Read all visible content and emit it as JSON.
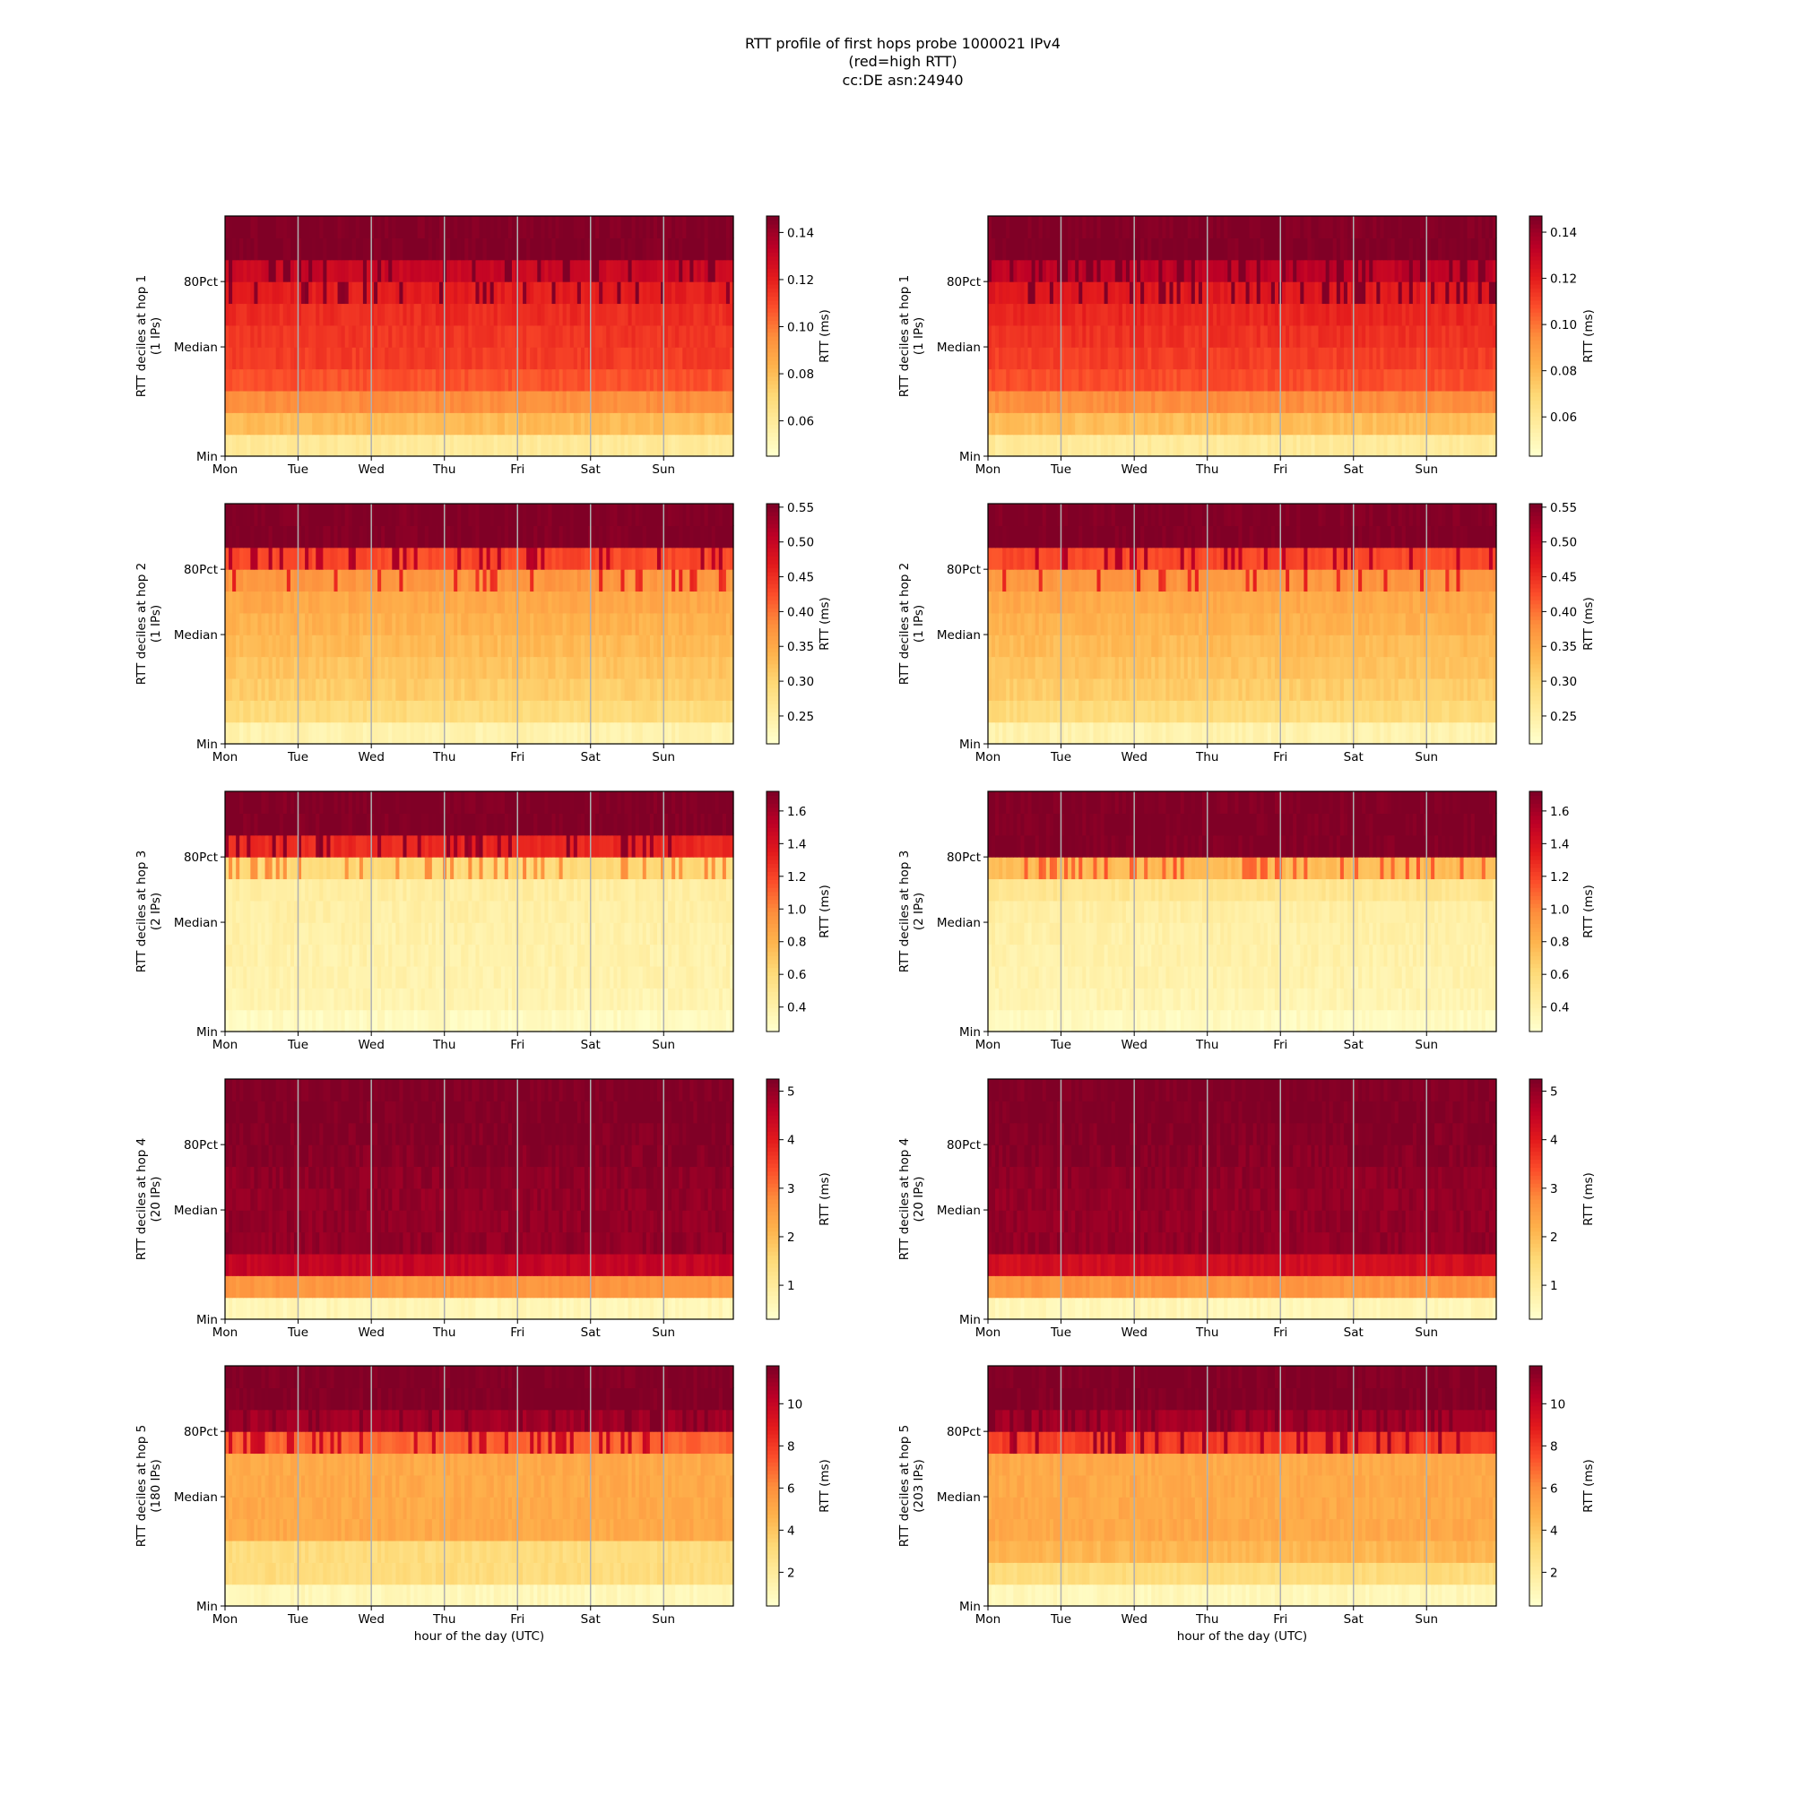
{
  "figure": {
    "title_lines": [
      "RTT profile of first hops probe 1000021 IPv4",
      "(red=high RTT)",
      "cc:DE asn:24940"
    ]
  },
  "shared": {
    "x_ticks": [
      "Mon",
      "Tue",
      "Wed",
      "Thu",
      "Fri",
      "Sat",
      "Sun"
    ],
    "y_ticks": [
      "Min",
      "Median",
      "80Pct"
    ],
    "xlabel": "hour of the day (UTC)",
    "colorbar_label": "RTT (ms)",
    "colormap": [
      "#ffffcc",
      "#ffeda0",
      "#fed976",
      "#feb24c",
      "#fd8d3c",
      "#fc4e2a",
      "#e31a1c",
      "#bd0026",
      "#800026"
    ]
  },
  "chart_data": [
    {
      "type": "heatmap",
      "ylabel": "RTT deciles at hop 1",
      "ips": "(1 IPs)",
      "cbar_ticks": [
        "0.06",
        "0.08",
        "0.10",
        "0.12",
        "0.14"
      ],
      "vmin": 0.045,
      "vmax": 0.147,
      "decile_values": [
        0.06,
        0.08,
        0.095,
        0.108,
        0.113,
        0.115,
        0.117,
        0.121,
        0.13,
        0.147
      ]
    },
    {
      "type": "heatmap",
      "ylabel": "RTT deciles at hop 1",
      "ips": "(1 IPs)",
      "cbar_ticks": [
        "0.06",
        "0.08",
        "0.10",
        "0.12",
        "0.14"
      ],
      "vmin": 0.043,
      "vmax": 0.147,
      "decile_values": [
        0.058,
        0.078,
        0.094,
        0.108,
        0.112,
        0.115,
        0.118,
        0.122,
        0.133,
        0.147
      ]
    },
    {
      "type": "heatmap",
      "ylabel": "RTT deciles at hop 2",
      "ips": "(1 IPs)",
      "cbar_ticks": [
        "0.25",
        "0.30",
        "0.35",
        "0.40",
        "0.45",
        "0.50",
        "0.55"
      ],
      "vmin": 0.21,
      "vmax": 0.555,
      "decile_values": [
        0.24,
        0.29,
        0.31,
        0.32,
        0.33,
        0.34,
        0.35,
        0.37,
        0.43,
        0.555
      ]
    },
    {
      "type": "heatmap",
      "ylabel": "RTT deciles at hop 2",
      "ips": "(1 IPs)",
      "cbar_ticks": [
        "0.25",
        "0.30",
        "0.35",
        "0.40",
        "0.45",
        "0.50",
        "0.55"
      ],
      "vmin": 0.21,
      "vmax": 0.555,
      "decile_values": [
        0.24,
        0.29,
        0.31,
        0.32,
        0.33,
        0.34,
        0.35,
        0.37,
        0.43,
        0.555
      ]
    },
    {
      "type": "heatmap",
      "ylabel": "RTT deciles at hop 3",
      "ips": "(2 IPs)",
      "cbar_ticks": [
        "0.4",
        "0.6",
        "0.8",
        "1.0",
        "1.2",
        "1.4",
        "1.6"
      ],
      "vmin": 0.25,
      "vmax": 1.72,
      "decile_values": [
        0.3,
        0.36,
        0.38,
        0.39,
        0.4,
        0.41,
        0.43,
        0.6,
        1.3,
        1.72
      ]
    },
    {
      "type": "heatmap",
      "ylabel": "RTT deciles at hop 3",
      "ips": "(2 IPs)",
      "cbar_ticks": [
        "0.4",
        "0.6",
        "0.8",
        "1.0",
        "1.2",
        "1.4",
        "1.6"
      ],
      "vmin": 0.25,
      "vmax": 1.72,
      "decile_values": [
        0.3,
        0.36,
        0.38,
        0.39,
        0.4,
        0.42,
        0.5,
        0.75,
        1.72,
        1.72
      ]
    },
    {
      "type": "heatmap",
      "ylabel": "RTT deciles at hop 4",
      "ips": "(20 IPs)",
      "cbar_ticks": [
        "1",
        "2",
        "3",
        "4",
        "5"
      ],
      "vmin": 0.3,
      "vmax": 5.25,
      "decile_values": [
        0.6,
        2.6,
        4.5,
        5.05,
        5.05,
        5.05,
        5.1,
        5.15,
        5.2,
        5.25
      ]
    },
    {
      "type": "heatmap",
      "ylabel": "RTT deciles at hop 4",
      "ips": "(20 IPs)",
      "cbar_ticks": [
        "1",
        "2",
        "3",
        "4",
        "5"
      ],
      "vmin": 0.3,
      "vmax": 5.25,
      "decile_values": [
        0.6,
        2.6,
        4.3,
        5.05,
        5.05,
        5.05,
        5.1,
        5.15,
        5.2,
        5.25
      ]
    },
    {
      "type": "heatmap",
      "ylabel": "RTT deciles at hop 5",
      "ips": "(180 IPs)",
      "cbar_ticks": [
        "2",
        "4",
        "6",
        "8",
        "10"
      ],
      "vmin": 0.4,
      "vmax": 11.8,
      "decile_values": [
        1.0,
        3.0,
        3.0,
        5.0,
        5.0,
        5.0,
        5.0,
        7.0,
        11.0,
        11.8
      ]
    },
    {
      "type": "heatmap",
      "ylabel": "RTT deciles at hop 5",
      "ips": "(203 IPs)",
      "cbar_ticks": [
        "2",
        "4",
        "6",
        "8",
        "10"
      ],
      "vmin": 0.4,
      "vmax": 11.8,
      "decile_values": [
        1.0,
        3.0,
        4.5,
        5.0,
        5.0,
        5.0,
        5.0,
        8.0,
        11.0,
        11.8
      ]
    }
  ]
}
